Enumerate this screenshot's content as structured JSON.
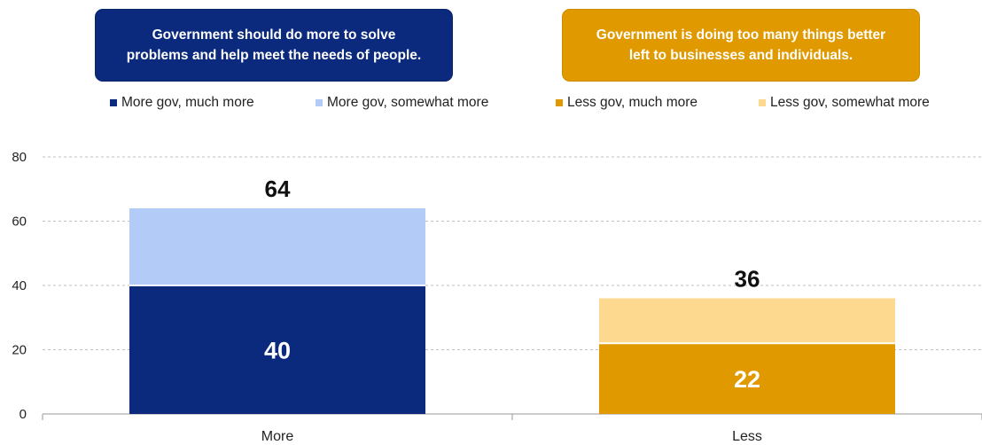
{
  "header_boxes": [
    {
      "text": "Government should do more to solve\nproblems and help meet the needs of people.",
      "color": "#0b2a7e"
    },
    {
      "text": "Government is doing too many things better\nleft to businesses and individuals.",
      "color": "#e09a00"
    }
  ],
  "chart_data": {
    "type": "bar",
    "stacked": true,
    "categories": [
      "More",
      "Less"
    ],
    "series": [
      {
        "name": "More gov, much more",
        "color": "#0b2a7e",
        "values": [
          40,
          null
        ],
        "label_color": "#ffffff"
      },
      {
        "name": "More gov, somewhat more",
        "color": "#b3ccf7",
        "values": [
          24,
          null
        ],
        "label_color": "#ffffff"
      },
      {
        "name": "Less gov, much more",
        "color": "#e09a00",
        "values": [
          null,
          22
        ],
        "label_color": "#ffffff"
      },
      {
        "name": "Less gov, somewhat more",
        "color": "#fdd98f",
        "values": [
          null,
          14
        ],
        "label_color": "#ffffff"
      }
    ],
    "bottom_labels": [
      "40",
      "22"
    ],
    "totals": [
      "64",
      "36"
    ],
    "y_ticks": [
      0,
      20,
      40,
      60,
      80
    ],
    "ylim": [
      0,
      80
    ],
    "grid": true,
    "legend_position": "top"
  }
}
